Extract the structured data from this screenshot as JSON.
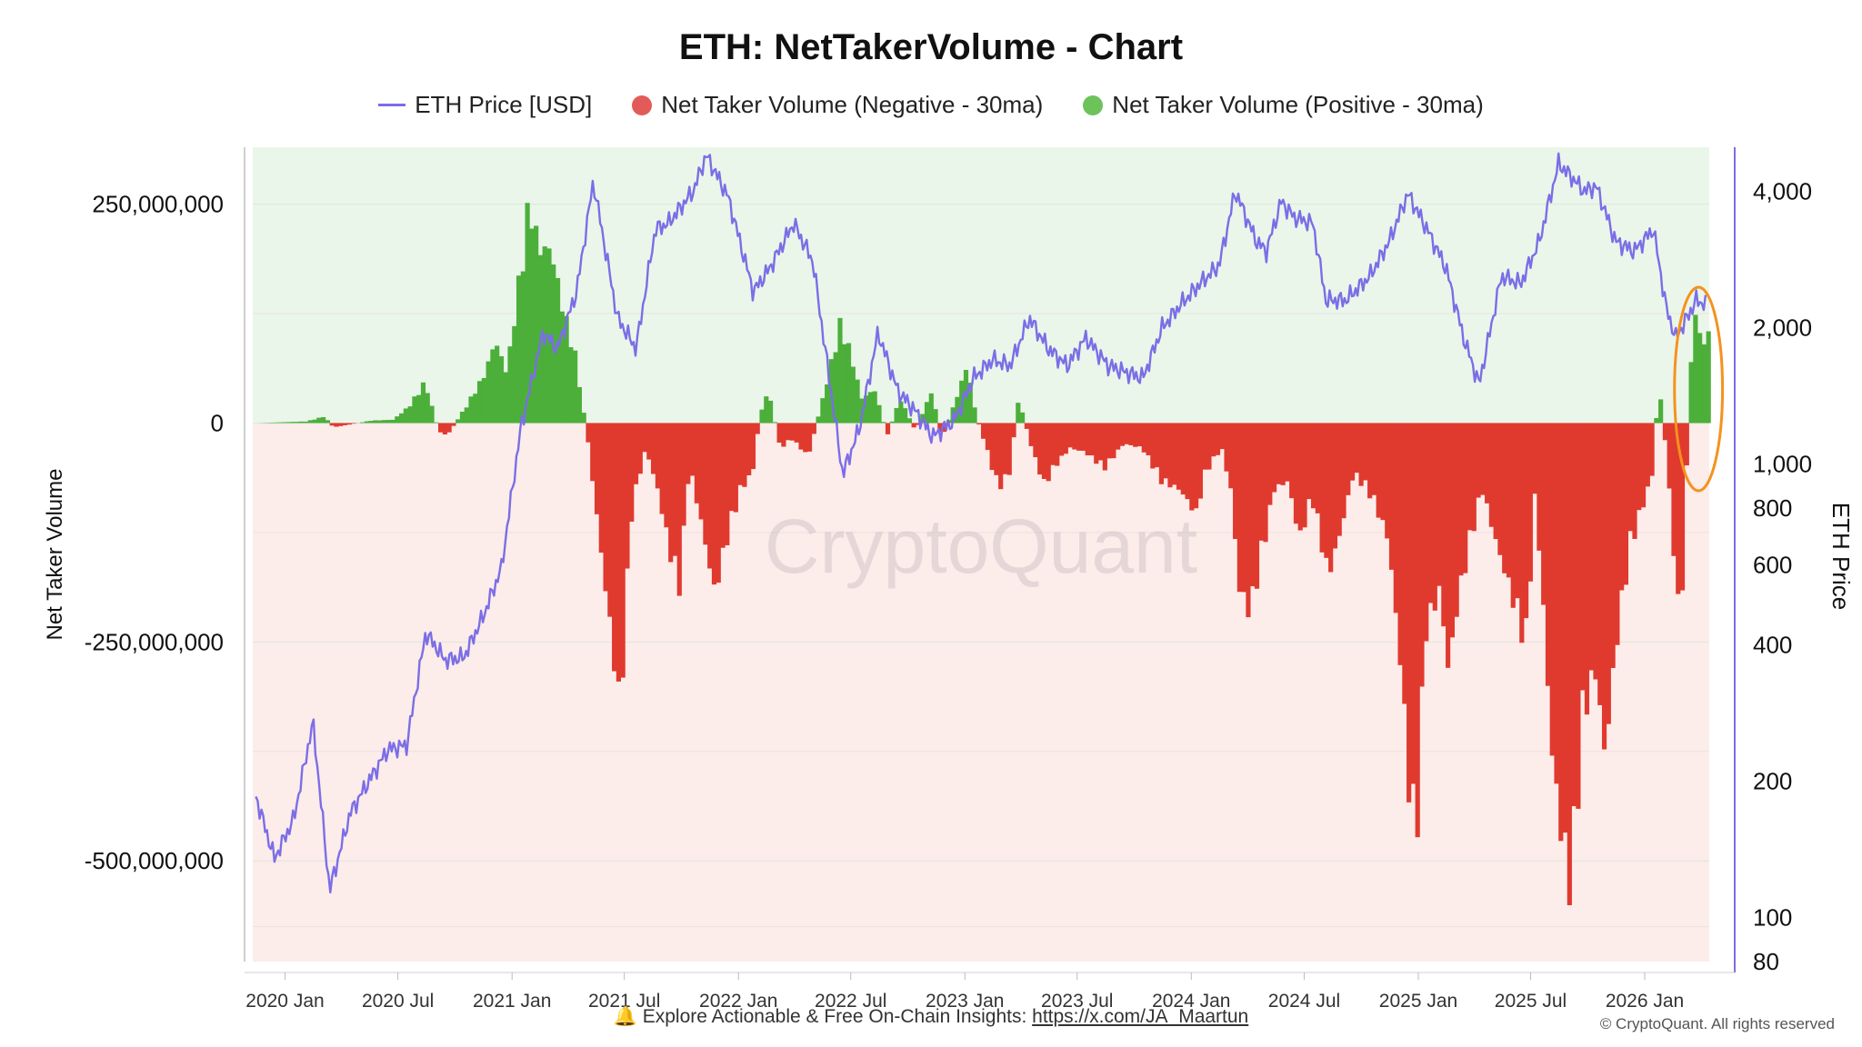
{
  "page": {
    "footer_icon": "bell-icon",
    "footer_text": "Explore Actionable & Free On-Chain Insights:",
    "footer_link": "https://x.com/JA_Maartun",
    "copyright": "© CryptoQuant. All rights reserved",
    "watermark": "CryptoQuant"
  },
  "chart_data": {
    "type": "bar",
    "title": "ETH: NetTakerVolume - Chart",
    "legend": [
      {
        "label": "ETH Price [USD]",
        "shape": "line",
        "color": "#7b6ee6"
      },
      {
        "label": "Net Taker Volume (Negative - 30ma)",
        "shape": "dot",
        "color": "#e25b58"
      },
      {
        "label": "Net Taker Volume (Positive - 30ma)",
        "shape": "dot",
        "color": "#6cc35a"
      }
    ],
    "legend_position": "top-center",
    "colors": {
      "price": "#7b6ee6",
      "negative": "#e03a2f",
      "positive": "#4caf3a",
      "bg_positive": "#eaf6ea",
      "bg_negative": "#fcecea",
      "annotation": "#f5921e"
    },
    "x_axis": {
      "scale": "time",
      "range": [
        "2019-11-10",
        "2026-04-15"
      ],
      "ticks": [
        "2020 Jan",
        "2020 Jul",
        "2021 Jan",
        "2021 Jul",
        "2022 Jan",
        "2022 Jul",
        "2023 Jan",
        "2023 Jul",
        "2024 Jan",
        "2024 Jul",
        "2025 Jan",
        "2025 Jul",
        "2026 Jan"
      ]
    },
    "y_left": {
      "label": "Net Taker Volume",
      "range": [
        -615000000,
        315000000
      ],
      "ticks": [
        250000000,
        0,
        -250000000,
        -500000000
      ],
      "tick_labels": [
        "250,000,000",
        "0",
        "-250,000,000",
        "-500,000,000"
      ]
    },
    "y_right": {
      "label": "ETH Price",
      "scale": "log",
      "range": [
        80,
        5000
      ],
      "ticks": [
        4000,
        2000,
        1000,
        800,
        600,
        400,
        200,
        100,
        80
      ],
      "tick_labels": [
        "4,000",
        "2,000",
        "1,000",
        "800",
        "600",
        "400",
        "200",
        "100",
        "80"
      ]
    },
    "grid": true,
    "annotation": {
      "type": "ellipse",
      "around": [
        "2026-02-15",
        "2026-04-10"
      ]
    },
    "net_taker_volume": [
      [
        "2019-11-15",
        0
      ],
      [
        "2020-02-01",
        2000000
      ],
      [
        "2020-03-01",
        8000000
      ],
      [
        "2020-03-15",
        -5000000
      ],
      [
        "2020-04-01",
        -3000000
      ],
      [
        "2020-05-15",
        3000000
      ],
      [
        "2020-06-20",
        4000000
      ],
      [
        "2020-07-15",
        20000000
      ],
      [
        "2020-08-10",
        50000000
      ],
      [
        "2020-09-01",
        -10000000
      ],
      [
        "2020-09-15",
        -15000000
      ],
      [
        "2020-10-15",
        20000000
      ],
      [
        "2020-11-15",
        60000000
      ],
      [
        "2020-12-01",
        100000000
      ],
      [
        "2020-12-20",
        60000000
      ],
      [
        "2021-01-10",
        180000000
      ],
      [
        "2021-01-25",
        270000000
      ],
      [
        "2021-02-10",
        210000000
      ],
      [
        "2021-03-01",
        210000000
      ],
      [
        "2021-03-20",
        140000000
      ],
      [
        "2021-04-10",
        80000000
      ],
      [
        "2021-05-01",
        -30000000
      ],
      [
        "2021-05-20",
        -150000000
      ],
      [
        "2021-06-10",
        -280000000
      ],
      [
        "2021-06-20",
        -355000000
      ],
      [
        "2021-07-10",
        -100000000
      ],
      [
        "2021-08-01",
        -30000000
      ],
      [
        "2021-08-20",
        -80000000
      ],
      [
        "2021-09-10",
        -160000000
      ],
      [
        "2021-09-25",
        -200000000
      ],
      [
        "2021-10-10",
        -50000000
      ],
      [
        "2021-11-01",
        -130000000
      ],
      [
        "2021-11-20",
        -205000000
      ],
      [
        "2021-12-10",
        -140000000
      ],
      [
        "2022-01-01",
        -80000000
      ],
      [
        "2022-01-20",
        -60000000
      ],
      [
        "2022-02-01",
        10000000
      ],
      [
        "2022-02-15",
        40000000
      ],
      [
        "2022-03-05",
        -30000000
      ],
      [
        "2022-03-25",
        -20000000
      ],
      [
        "2022-04-20",
        -40000000
      ],
      [
        "2022-05-20",
        50000000
      ],
      [
        "2022-06-10",
        120000000
      ],
      [
        "2022-06-25",
        90000000
      ],
      [
        "2022-07-15",
        30000000
      ],
      [
        "2022-08-05",
        40000000
      ],
      [
        "2022-08-25",
        -15000000
      ],
      [
        "2022-09-15",
        30000000
      ],
      [
        "2022-10-10",
        -10000000
      ],
      [
        "2022-11-05",
        40000000
      ],
      [
        "2022-11-20",
        -20000000
      ],
      [
        "2022-12-10",
        20000000
      ],
      [
        "2023-01-01",
        70000000
      ],
      [
        "2023-01-15",
        10000000
      ],
      [
        "2023-02-01",
        -30000000
      ],
      [
        "2023-02-20",
        -80000000
      ],
      [
        "2023-03-10",
        -60000000
      ],
      [
        "2023-03-25",
        30000000
      ],
      [
        "2023-04-15",
        -30000000
      ],
      [
        "2023-05-05",
        -75000000
      ],
      [
        "2023-05-25",
        -50000000
      ],
      [
        "2023-06-15",
        -30000000
      ],
      [
        "2023-07-10",
        -35000000
      ],
      [
        "2023-08-10",
        -55000000
      ],
      [
        "2023-09-10",
        -25000000
      ],
      [
        "2023-10-10",
        -30000000
      ],
      [
        "2023-11-10",
        -70000000
      ],
      [
        "2023-12-10",
        -80000000
      ],
      [
        "2024-01-05",
        -110000000
      ],
      [
        "2024-01-20",
        -60000000
      ],
      [
        "2024-02-15",
        -30000000
      ],
      [
        "2024-03-01",
        -80000000
      ],
      [
        "2024-03-15",
        -200000000
      ],
      [
        "2024-04-01",
        -230000000
      ],
      [
        "2024-04-20",
        -160000000
      ],
      [
        "2024-05-10",
        -80000000
      ],
      [
        "2024-06-01",
        -70000000
      ],
      [
        "2024-06-20",
        -140000000
      ],
      [
        "2024-07-10",
        -90000000
      ],
      [
        "2024-08-05",
        -185000000
      ],
      [
        "2024-08-25",
        -130000000
      ],
      [
        "2024-09-15",
        -60000000
      ],
      [
        "2024-10-15",
        -90000000
      ],
      [
        "2024-11-10",
        -140000000
      ],
      [
        "2024-12-01",
        -300000000
      ],
      [
        "2024-12-15",
        -460000000
      ],
      [
        "2024-12-25",
        -505000000
      ],
      [
        "2025-01-10",
        -250000000
      ],
      [
        "2025-02-01",
        -200000000
      ],
      [
        "2025-02-15",
        -300000000
      ],
      [
        "2025-03-01",
        -220000000
      ],
      [
        "2025-03-20",
        -150000000
      ],
      [
        "2025-04-10",
        -80000000
      ],
      [
        "2025-05-05",
        -150000000
      ],
      [
        "2025-05-25",
        -200000000
      ],
      [
        "2025-06-20",
        -270000000
      ],
      [
        "2025-07-05",
        -80000000
      ],
      [
        "2025-07-20",
        -250000000
      ],
      [
        "2025-08-01",
        -400000000
      ],
      [
        "2025-08-20",
        -520000000
      ],
      [
        "2025-09-01",
        -565000000
      ],
      [
        "2025-09-20",
        -350000000
      ],
      [
        "2025-10-10",
        -300000000
      ],
      [
        "2025-10-25",
        -400000000
      ],
      [
        "2025-11-15",
        -250000000
      ],
      [
        "2025-12-05",
        -150000000
      ],
      [
        "2025-12-25",
        -100000000
      ],
      [
        "2026-01-10",
        -60000000
      ],
      [
        "2026-01-20",
        50000000
      ],
      [
        "2026-01-30",
        -20000000
      ],
      [
        "2026-02-10",
        -120000000
      ],
      [
        "2026-02-20",
        -230000000
      ],
      [
        "2026-03-01",
        -180000000
      ],
      [
        "2026-03-10",
        40000000
      ],
      [
        "2026-03-20",
        140000000
      ],
      [
        "2026-03-30",
        90000000
      ],
      [
        "2026-04-10",
        110000000
      ]
    ],
    "eth_price_usd": [
      [
        "2019-11-15",
        185
      ],
      [
        "2019-12-15",
        135
      ],
      [
        "2020-01-15",
        165
      ],
      [
        "2020-02-15",
        270
      ],
      [
        "2020-03-13",
        115
      ],
      [
        "2020-04-15",
        170
      ],
      [
        "2020-05-15",
        200
      ],
      [
        "2020-06-15",
        235
      ],
      [
        "2020-07-15",
        240
      ],
      [
        "2020-08-15",
        425
      ],
      [
        "2020-09-15",
        370
      ],
      [
        "2020-10-15",
        375
      ],
      [
        "2020-11-15",
        460
      ],
      [
        "2020-12-15",
        590
      ],
      [
        "2021-01-15",
        1200
      ],
      [
        "2021-02-20",
        1950
      ],
      [
        "2021-03-15",
        1800
      ],
      [
        "2021-04-15",
        2400
      ],
      [
        "2021-05-12",
        4200
      ],
      [
        "2021-06-20",
        2100
      ],
      [
        "2021-07-20",
        1800
      ],
      [
        "2021-08-20",
        3300
      ],
      [
        "2021-09-10",
        3400
      ],
      [
        "2021-10-20",
        4000
      ],
      [
        "2021-11-10",
        4800
      ],
      [
        "2021-12-15",
        3900
      ],
      [
        "2022-01-25",
        2400
      ],
      [
        "2022-02-20",
        2700
      ],
      [
        "2022-03-31",
        3400
      ],
      [
        "2022-05-01",
        2800
      ],
      [
        "2022-06-18",
        950
      ],
      [
        "2022-07-15",
        1200
      ],
      [
        "2022-08-14",
        1950
      ],
      [
        "2022-09-15",
        1450
      ],
      [
        "2022-10-15",
        1300
      ],
      [
        "2022-11-10",
        1150
      ],
      [
        "2022-12-15",
        1250
      ],
      [
        "2023-01-15",
        1550
      ],
      [
        "2023-02-15",
        1700
      ],
      [
        "2023-03-15",
        1650
      ],
      [
        "2023-04-15",
        2100
      ],
      [
        "2023-05-15",
        1800
      ],
      [
        "2023-06-15",
        1650
      ],
      [
        "2023-07-15",
        1900
      ],
      [
        "2023-08-20",
        1650
      ],
      [
        "2023-09-15",
        1600
      ],
      [
        "2023-10-15",
        1550
      ],
      [
        "2023-11-15",
        2000
      ],
      [
        "2023-12-15",
        2250
      ],
      [
        "2024-01-15",
        2500
      ],
      [
        "2024-02-15",
        2750
      ],
      [
        "2024-03-12",
        4000
      ],
      [
        "2024-04-15",
        3100
      ],
      [
        "2024-05-01",
        2950
      ],
      [
        "2024-05-25",
        3800
      ],
      [
        "2024-06-15",
        3500
      ],
      [
        "2024-07-15",
        3400
      ],
      [
        "2024-08-05",
        2300
      ],
      [
        "2024-09-06",
        2300
      ],
      [
        "2024-10-15",
        2600
      ],
      [
        "2024-11-15",
        3100
      ],
      [
        "2024-12-15",
        3950
      ],
      [
        "2025-01-15",
        3300
      ],
      [
        "2025-02-15",
        2700
      ],
      [
        "2025-03-15",
        1900
      ],
      [
        "2025-04-09",
        1500
      ],
      [
        "2025-05-15",
        2600
      ],
      [
        "2025-06-15",
        2500
      ],
      [
        "2025-07-15",
        3100
      ],
      [
        "2025-08-15",
        4600
      ],
      [
        "2025-09-05",
        4300
      ],
      [
        "2025-09-25",
        4000
      ],
      [
        "2025-10-15",
        4100
      ],
      [
        "2025-11-15",
        3100
      ],
      [
        "2025-12-15",
        2950
      ],
      [
        "2026-01-15",
        3300
      ],
      [
        "2026-02-05",
        2200
      ],
      [
        "2026-02-20",
        1900
      ],
      [
        "2026-03-10",
        2100
      ],
      [
        "2026-03-25",
        2300
      ],
      [
        "2026-04-10",
        2250
      ]
    ]
  }
}
